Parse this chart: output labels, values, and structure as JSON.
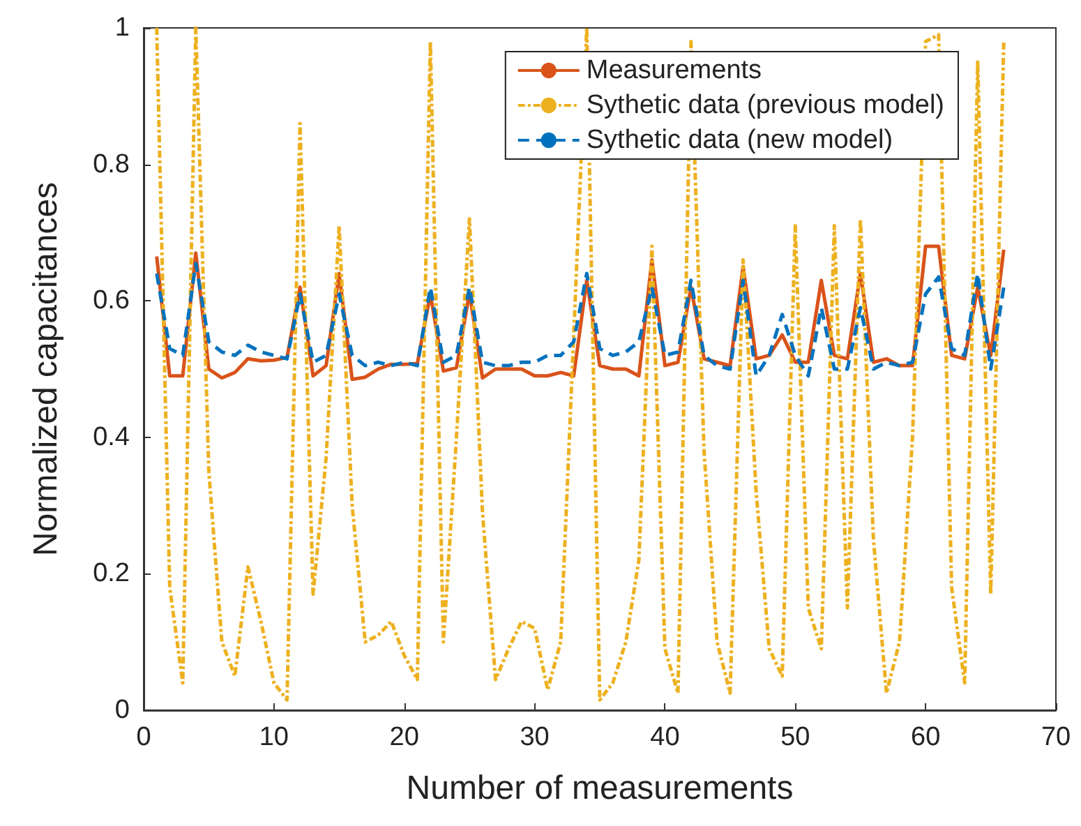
{
  "chart_data": {
    "type": "line",
    "xlabel": "Number of measurements",
    "ylabel": "Normalized capacitances",
    "x": [
      1,
      2,
      3,
      4,
      5,
      6,
      7,
      8,
      9,
      10,
      11,
      12,
      13,
      14,
      15,
      16,
      17,
      18,
      19,
      20,
      21,
      22,
      23,
      24,
      25,
      26,
      27,
      28,
      29,
      30,
      31,
      32,
      33,
      34,
      35,
      36,
      37,
      38,
      39,
      40,
      41,
      42,
      43,
      44,
      45,
      46,
      47,
      48,
      49,
      50,
      51,
      52,
      53,
      54,
      55,
      56,
      57,
      58,
      59,
      60,
      61,
      62,
      63,
      64,
      65,
      66
    ],
    "series": [
      {
        "name": "Measurements",
        "color": "#d95319",
        "line_style": "solid",
        "values": [
          0.665,
          0.49,
          0.49,
          0.67,
          0.5,
          0.487,
          0.495,
          0.515,
          0.512,
          0.513,
          0.517,
          0.62,
          0.49,
          0.505,
          0.64,
          0.485,
          0.488,
          0.5,
          0.507,
          0.507,
          0.508,
          0.61,
          0.497,
          0.502,
          0.612,
          0.487,
          0.5,
          0.5,
          0.5,
          0.49,
          0.49,
          0.495,
          0.49,
          0.63,
          0.505,
          0.5,
          0.5,
          0.49,
          0.66,
          0.505,
          0.51,
          0.62,
          0.515,
          0.51,
          0.505,
          0.65,
          0.515,
          0.52,
          0.55,
          0.51,
          0.51,
          0.63,
          0.52,
          0.515,
          0.64,
          0.51,
          0.515,
          0.505,
          0.505,
          0.68,
          0.68,
          0.52,
          0.515,
          0.62,
          0.52,
          0.675
        ]
      },
      {
        "name": "Sythetic data (previous model)",
        "color": "#edb120",
        "line_style": "dotted",
        "values": [
          1.0,
          0.18,
          0.04,
          1.0,
          0.35,
          0.1,
          0.05,
          0.21,
          0.13,
          0.04,
          0.015,
          0.86,
          0.17,
          0.37,
          0.71,
          0.3,
          0.1,
          0.11,
          0.13,
          0.08,
          0.045,
          0.98,
          0.1,
          0.4,
          0.72,
          0.29,
          0.045,
          0.09,
          0.13,
          0.12,
          0.03,
          0.1,
          0.55,
          1.0,
          0.015,
          0.04,
          0.1,
          0.22,
          0.68,
          0.09,
          0.025,
          0.98,
          0.38,
          0.1,
          0.025,
          0.66,
          0.32,
          0.09,
          0.05,
          0.71,
          0.15,
          0.09,
          0.71,
          0.15,
          0.72,
          0.25,
          0.025,
          0.1,
          0.4,
          0.98,
          0.99,
          0.18,
          0.04,
          0.95,
          0.17,
          0.98
        ]
      },
      {
        "name": "Sythetic data (new model)",
        "color": "#0072bd",
        "line_style": "dashed",
        "values": [
          0.64,
          0.53,
          0.52,
          0.655,
          0.54,
          0.525,
          0.52,
          0.535,
          0.525,
          0.52,
          0.515,
          0.61,
          0.51,
          0.52,
          0.61,
          0.52,
          0.505,
          0.51,
          0.505,
          0.51,
          0.505,
          0.62,
          0.51,
          0.52,
          0.62,
          0.51,
          0.505,
          0.505,
          0.51,
          0.51,
          0.52,
          0.52,
          0.54,
          0.64,
          0.53,
          0.52,
          0.525,
          0.54,
          0.62,
          0.52,
          0.525,
          0.63,
          0.52,
          0.505,
          0.5,
          0.63,
          0.49,
          0.52,
          0.58,
          0.52,
          0.49,
          0.59,
          0.5,
          0.5,
          0.59,
          0.5,
          0.51,
          0.505,
          0.51,
          0.61,
          0.635,
          0.53,
          0.52,
          0.64,
          0.5,
          0.62
        ]
      }
    ],
    "xlim": [
      0,
      70
    ],
    "xticks": [
      0,
      10,
      20,
      30,
      40,
      50,
      60,
      70
    ],
    "ylim": [
      0,
      1
    ],
    "yticks": [
      0,
      0.2,
      0.4,
      0.6,
      0.8,
      1
    ],
    "grid": false,
    "legend": "top right",
    "marker": "none"
  }
}
